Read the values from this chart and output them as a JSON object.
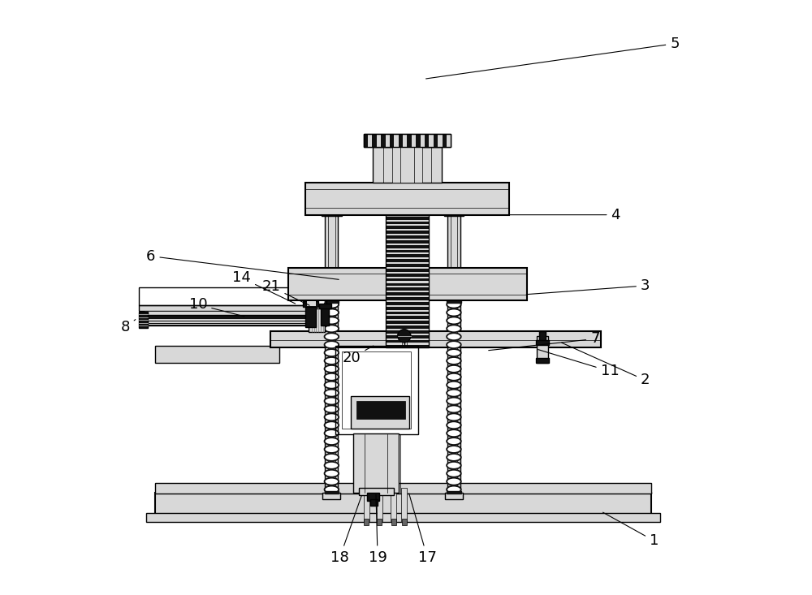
{
  "bg_color": "#ffffff",
  "line_color": "#000000",
  "dark_fill": "#111111",
  "gray_fill": "#888888",
  "light_gray": "#d8d8d8",
  "mid_gray": "#666666",
  "fig_width": 10.0,
  "fig_height": 7.33,
  "dpi": 100,
  "label_data": {
    "1": {
      "lpos": [
        0.92,
        0.088
      ],
      "lend": [
        0.83,
        0.138
      ]
    },
    "2": {
      "lpos": [
        0.905,
        0.36
      ],
      "lend": [
        0.76,
        0.425
      ]
    },
    "3": {
      "lpos": [
        0.905,
        0.52
      ],
      "lend": [
        0.7,
        0.505
      ]
    },
    "4": {
      "lpos": [
        0.855,
        0.64
      ],
      "lend": [
        0.66,
        0.64
      ]
    },
    "5": {
      "lpos": [
        0.955,
        0.93
      ],
      "lend": [
        0.53,
        0.87
      ]
    },
    "6": {
      "lpos": [
        0.068,
        0.57
      ],
      "lend": [
        0.39,
        0.53
      ]
    },
    "7": {
      "lpos": [
        0.82,
        0.43
      ],
      "lend": [
        0.636,
        0.41
      ]
    },
    "8": {
      "lpos": [
        0.025,
        0.45
      ],
      "lend": [
        0.045,
        0.465
      ]
    },
    "10": {
      "lpos": [
        0.148,
        0.488
      ],
      "lend": [
        0.23,
        0.467
      ]
    },
    "11": {
      "lpos": [
        0.845,
        0.375
      ],
      "lend": [
        0.72,
        0.413
      ]
    },
    "14": {
      "lpos": [
        0.222,
        0.533
      ],
      "lend": [
        0.316,
        0.488
      ]
    },
    "17": {
      "lpos": [
        0.536,
        0.06
      ],
      "lend": [
        0.504,
        0.172
      ]
    },
    "18": {
      "lpos": [
        0.388,
        0.06
      ],
      "lend": [
        0.426,
        0.168
      ]
    },
    "19": {
      "lpos": [
        0.452,
        0.06
      ],
      "lend": [
        0.449,
        0.17
      ]
    },
    "20": {
      "lpos": [
        0.408,
        0.398
      ],
      "lend": [
        0.448,
        0.42
      ]
    },
    "21": {
      "lpos": [
        0.272,
        0.518
      ],
      "lend": [
        0.34,
        0.485
      ]
    }
  }
}
